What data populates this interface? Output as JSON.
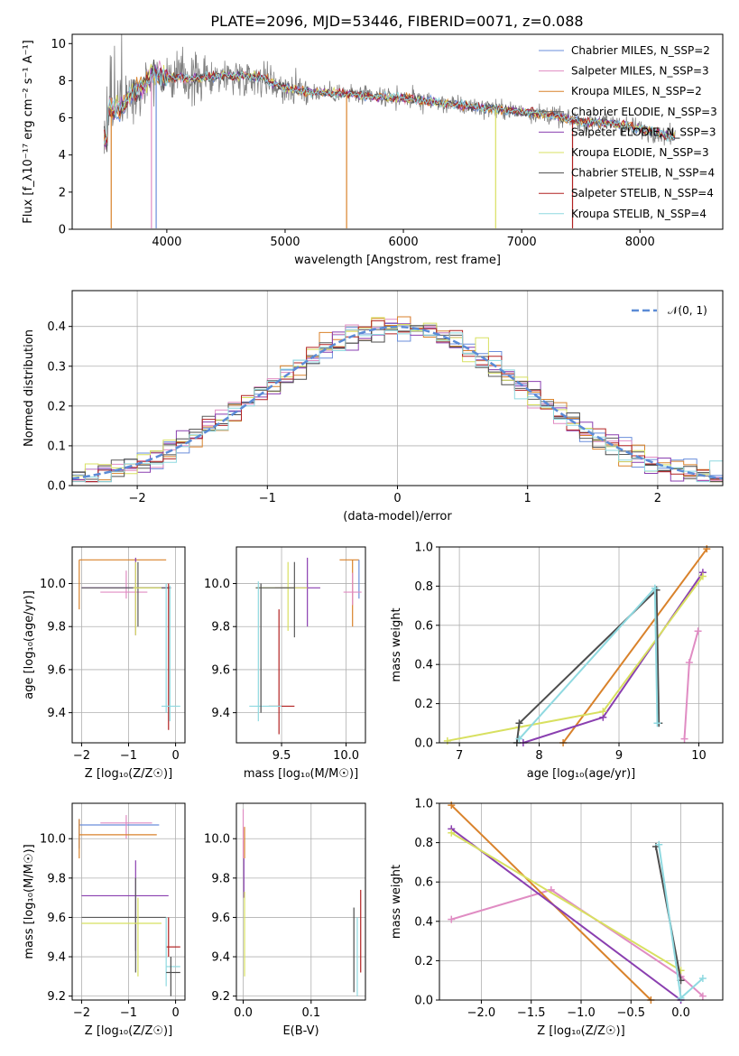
{
  "figure": {
    "title": "PLATE=2096, MJD=53446, FIBERID=0071, z=0.088",
    "colors": [
      "#6a8edb",
      "#e08cc3",
      "#d9822b",
      "#5a5a5a",
      "#8a3fb0",
      "#d8e060",
      "#4d4d4d",
      "#b22222",
      "#8fd9e0"
    ]
  },
  "chart_data": [
    {
      "id": "spectrum",
      "type": "line",
      "xlabel": "wavelength [Angstrom, rest frame]",
      "ylabel": "Flux [f_λ10⁻¹⁷ erg cm⁻² s⁻¹ A⁻¹]",
      "xlim": [
        3200,
        8700
      ],
      "ylim": [
        0,
        10.5
      ],
      "xticks": [
        "4000",
        "5000",
        "6000",
        "7000",
        "8000"
      ],
      "yticks": [
        "0",
        "2",
        "4",
        "6",
        "8",
        "10"
      ],
      "legend_position": "top-right",
      "legend": [
        "Chabrier MILES, N_SSP=2",
        "Salpeter MILES, N_SSP=3",
        "Kroupa MILES, N_SSP=2",
        "Chabrier ELODIE, N_SSP=3",
        "Salpeter ELODIE, N_SSP=3",
        "Kroupa ELODIE, N_SSP=3",
        "Chabrier STELIB, N_SSP=4",
        "Salpeter STELIB, N_SSP=4",
        "Kroupa STELIB, N_SSP=4"
      ],
      "continuum": {
        "x": [
          3500,
          3600,
          3700,
          3800,
          3900,
          4000,
          4200,
          4500,
          4800,
          5000,
          5200,
          5500,
          5800,
          6000,
          6300,
          6600,
          6900,
          7200,
          7500,
          7800,
          8000,
          8200,
          8300
        ],
        "y": [
          6.5,
          6.4,
          7.3,
          7.8,
          8.4,
          8.2,
          8.1,
          8.3,
          8.2,
          7.6,
          7.4,
          7.3,
          7.1,
          7.1,
          6.8,
          6.6,
          6.4,
          6.2,
          5.8,
          5.7,
          5.4,
          5.1,
          4.9
        ]
      }
    },
    {
      "id": "residuals",
      "type": "line",
      "xlabel": "(data-model)/error",
      "ylabel": "Normed distribution",
      "xlim": [
        -2.5,
        2.5
      ],
      "ylim": [
        0,
        0.49
      ],
      "xticks": [
        "−2",
        "−1",
        "0",
        "1",
        "2"
      ],
      "yticks": [
        "0.0",
        "0.1",
        "0.2",
        "0.3",
        "0.4"
      ],
      "legend_position": "top-right",
      "legend": [
        "𝒩(0, 1)"
      ],
      "grid": true
    },
    {
      "id": "age_vs_Z",
      "type": "scatter",
      "xlabel": "Z [log₁₀(Z/Z☉)]",
      "ylabel": "age  [log₁₀(age/yr)]",
      "xlim": [
        -2.2,
        0.2
      ],
      "ylim": [
        9.26,
        10.17
      ],
      "xticks": [
        "−2",
        "−1",
        "0"
      ],
      "yticks": [
        "9.4",
        "9.6",
        "9.8",
        "10.0"
      ],
      "grid": true
    },
    {
      "id": "age_vs_mass",
      "type": "scatter",
      "xlabel": "mass [log₁₀(M/M☉)]",
      "xlim": [
        9.15,
        10.15
      ],
      "ylim": [
        9.26,
        10.17
      ],
      "xticks": [
        "9.5",
        "10.0"
      ],
      "yticks": [
        "9.4",
        "9.6",
        "9.8",
        "10.0"
      ],
      "grid": true
    },
    {
      "id": "weight_vs_age",
      "type": "line",
      "xlabel": "age  [log₁₀(age/yr)]",
      "ylabel": "mass weight",
      "xlim": [
        6.75,
        10.3
      ],
      "ylim": [
        0,
        1
      ],
      "xticks": [
        "7",
        "8",
        "9",
        "10"
      ],
      "yticks": [
        "0.0",
        "0.2",
        "0.4",
        "0.6",
        "0.8",
        "1.0"
      ],
      "grid": true,
      "series": [
        {
          "color": "#e08cc3",
          "x": [
            9.82,
            9.88,
            9.99
          ],
          "y": [
            0.02,
            0.41,
            0.57
          ]
        },
        {
          "color": "#d9822b",
          "x": [
            8.3,
            10.1
          ],
          "y": [
            0.0,
            0.99
          ]
        },
        {
          "color": "#8a3fb0",
          "x": [
            7.8,
            8.8,
            10.05
          ],
          "y": [
            0.0,
            0.13,
            0.87
          ]
        },
        {
          "color": "#d8e060",
          "x": [
            6.85,
            7.75,
            8.8,
            10.05
          ],
          "y": [
            0.01,
            0.08,
            0.16,
            0.85
          ]
        },
        {
          "color": "#4d4d4d",
          "x": [
            7.72,
            7.75,
            9.47,
            9.5
          ],
          "y": [
            0.0,
            0.1,
            0.78,
            0.1
          ]
        },
        {
          "color": "#8fd9e0",
          "x": [
            7.75,
            9.45,
            9.48
          ],
          "y": [
            0.02,
            0.79,
            0.1
          ]
        }
      ]
    },
    {
      "id": "mass_vs_Z",
      "type": "scatter",
      "xlabel": "Z [log₁₀(Z/Z☉)]",
      "ylabel": "mass [log₁₀(M/M☉)]",
      "xlim": [
        -2.2,
        0.2
      ],
      "ylim": [
        9.18,
        10.18
      ],
      "xticks": [
        "−2",
        "−1",
        "0"
      ],
      "yticks": [
        "9.2",
        "9.4",
        "9.6",
        "9.8",
        "10.0"
      ],
      "grid": true
    },
    {
      "id": "mass_vs_ebv",
      "type": "scatter",
      "xlabel": "E(B-V)",
      "xlim": [
        -0.01,
        0.18
      ],
      "ylim": [
        9.18,
        10.18
      ],
      "xticks": [
        "0.0",
        "0.1"
      ],
      "yticks": [
        "9.2",
        "9.4",
        "9.6",
        "9.8",
        "10.0"
      ],
      "grid": true
    },
    {
      "id": "weight_vs_Z",
      "type": "line",
      "xlabel": "Z [log₁₀(Z/Z☉)]",
      "ylabel": "mass weight",
      "xlim": [
        -2.42,
        0.42
      ],
      "ylim": [
        0,
        1
      ],
      "xticks": [
        "−2.0",
        "−1.5",
        "−1.0",
        "−0.5",
        "0.0"
      ],
      "yticks": [
        "0.0",
        "0.2",
        "0.4",
        "0.6",
        "0.8",
        "1.0"
      ],
      "grid": true,
      "series": [
        {
          "color": "#e08cc3",
          "x": [
            -2.3,
            -1.3,
            0.0,
            0.22
          ],
          "y": [
            0.41,
            0.56,
            0.12,
            0.02
          ]
        },
        {
          "color": "#d9822b",
          "x": [
            -2.3,
            -0.3
          ],
          "y": [
            0.99,
            0.0
          ]
        },
        {
          "color": "#8a3fb0",
          "x": [
            -2.3,
            0.0
          ],
          "y": [
            0.87,
            0.0
          ]
        },
        {
          "color": "#d8e060",
          "x": [
            -2.3,
            0.0
          ],
          "y": [
            0.85,
            0.15
          ]
        },
        {
          "color": "#4d4d4d",
          "x": [
            -0.25,
            0.0
          ],
          "y": [
            0.78,
            0.1
          ]
        },
        {
          "color": "#8fd9e0",
          "x": [
            -0.22,
            0.0,
            0.22
          ],
          "y": [
            0.79,
            0.01,
            0.11
          ]
        }
      ]
    }
  ]
}
